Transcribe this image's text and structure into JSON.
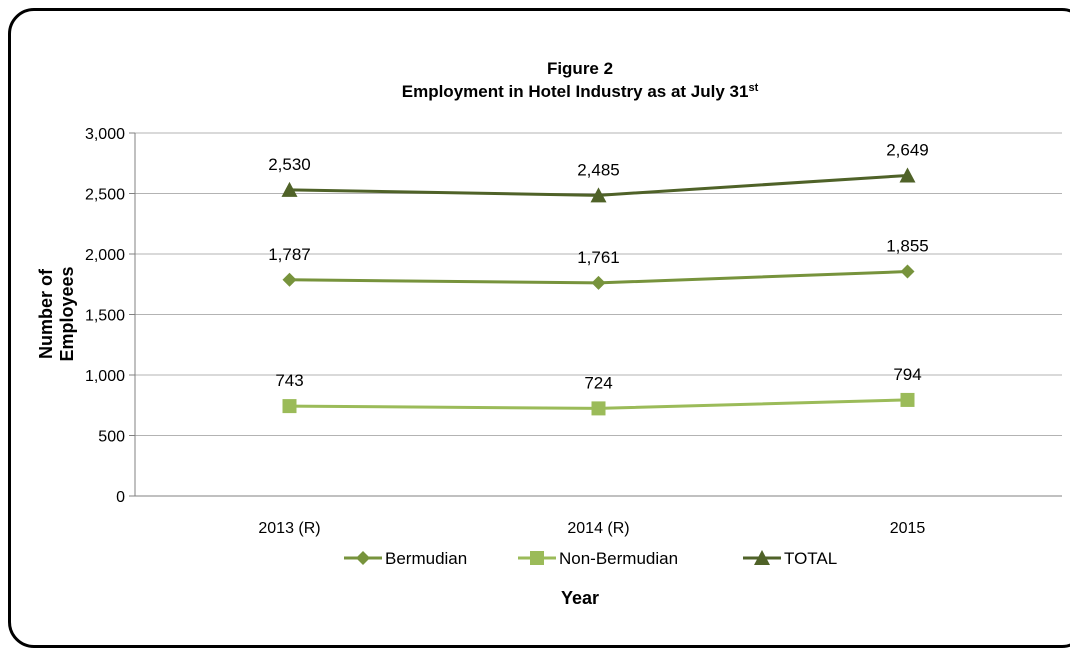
{
  "chart_data": {
    "type": "line",
    "title_line1": "Figure 2",
    "title_line2": "Employment in Hotel Industry as at July 31",
    "title_superscript": "st",
    "xlabel": "Year",
    "ylabel_line1": "Number of",
    "ylabel_line2": "Employees",
    "categories": [
      "2013 (R)",
      "2014 (R)",
      "2015"
    ],
    "ylim": [
      0,
      3000
    ],
    "yticks": [
      0,
      500,
      1000,
      1500,
      2000,
      2500,
      3000
    ],
    "ytick_labels": [
      "0",
      "500",
      "1,000",
      "1,500",
      "2,000",
      "2,500",
      "3,000"
    ],
    "grid": true,
    "legend_position": "bottom",
    "series": [
      {
        "name": "Bermudian",
        "values": [
          1787,
          1761,
          1855
        ],
        "labels": [
          "1,787",
          "1,761",
          "1,855"
        ],
        "color": "#77933c",
        "marker": "diamond"
      },
      {
        "name": "Non-Bermudian",
        "values": [
          743,
          724,
          794
        ],
        "labels": [
          "743",
          "724",
          "794"
        ],
        "color": "#9bbb59",
        "marker": "square"
      },
      {
        "name": "TOTAL",
        "values": [
          2530,
          2485,
          2649
        ],
        "labels": [
          "2,530",
          "2,485",
          "2,649"
        ],
        "color": "#4f6228",
        "marker": "triangle"
      }
    ]
  }
}
